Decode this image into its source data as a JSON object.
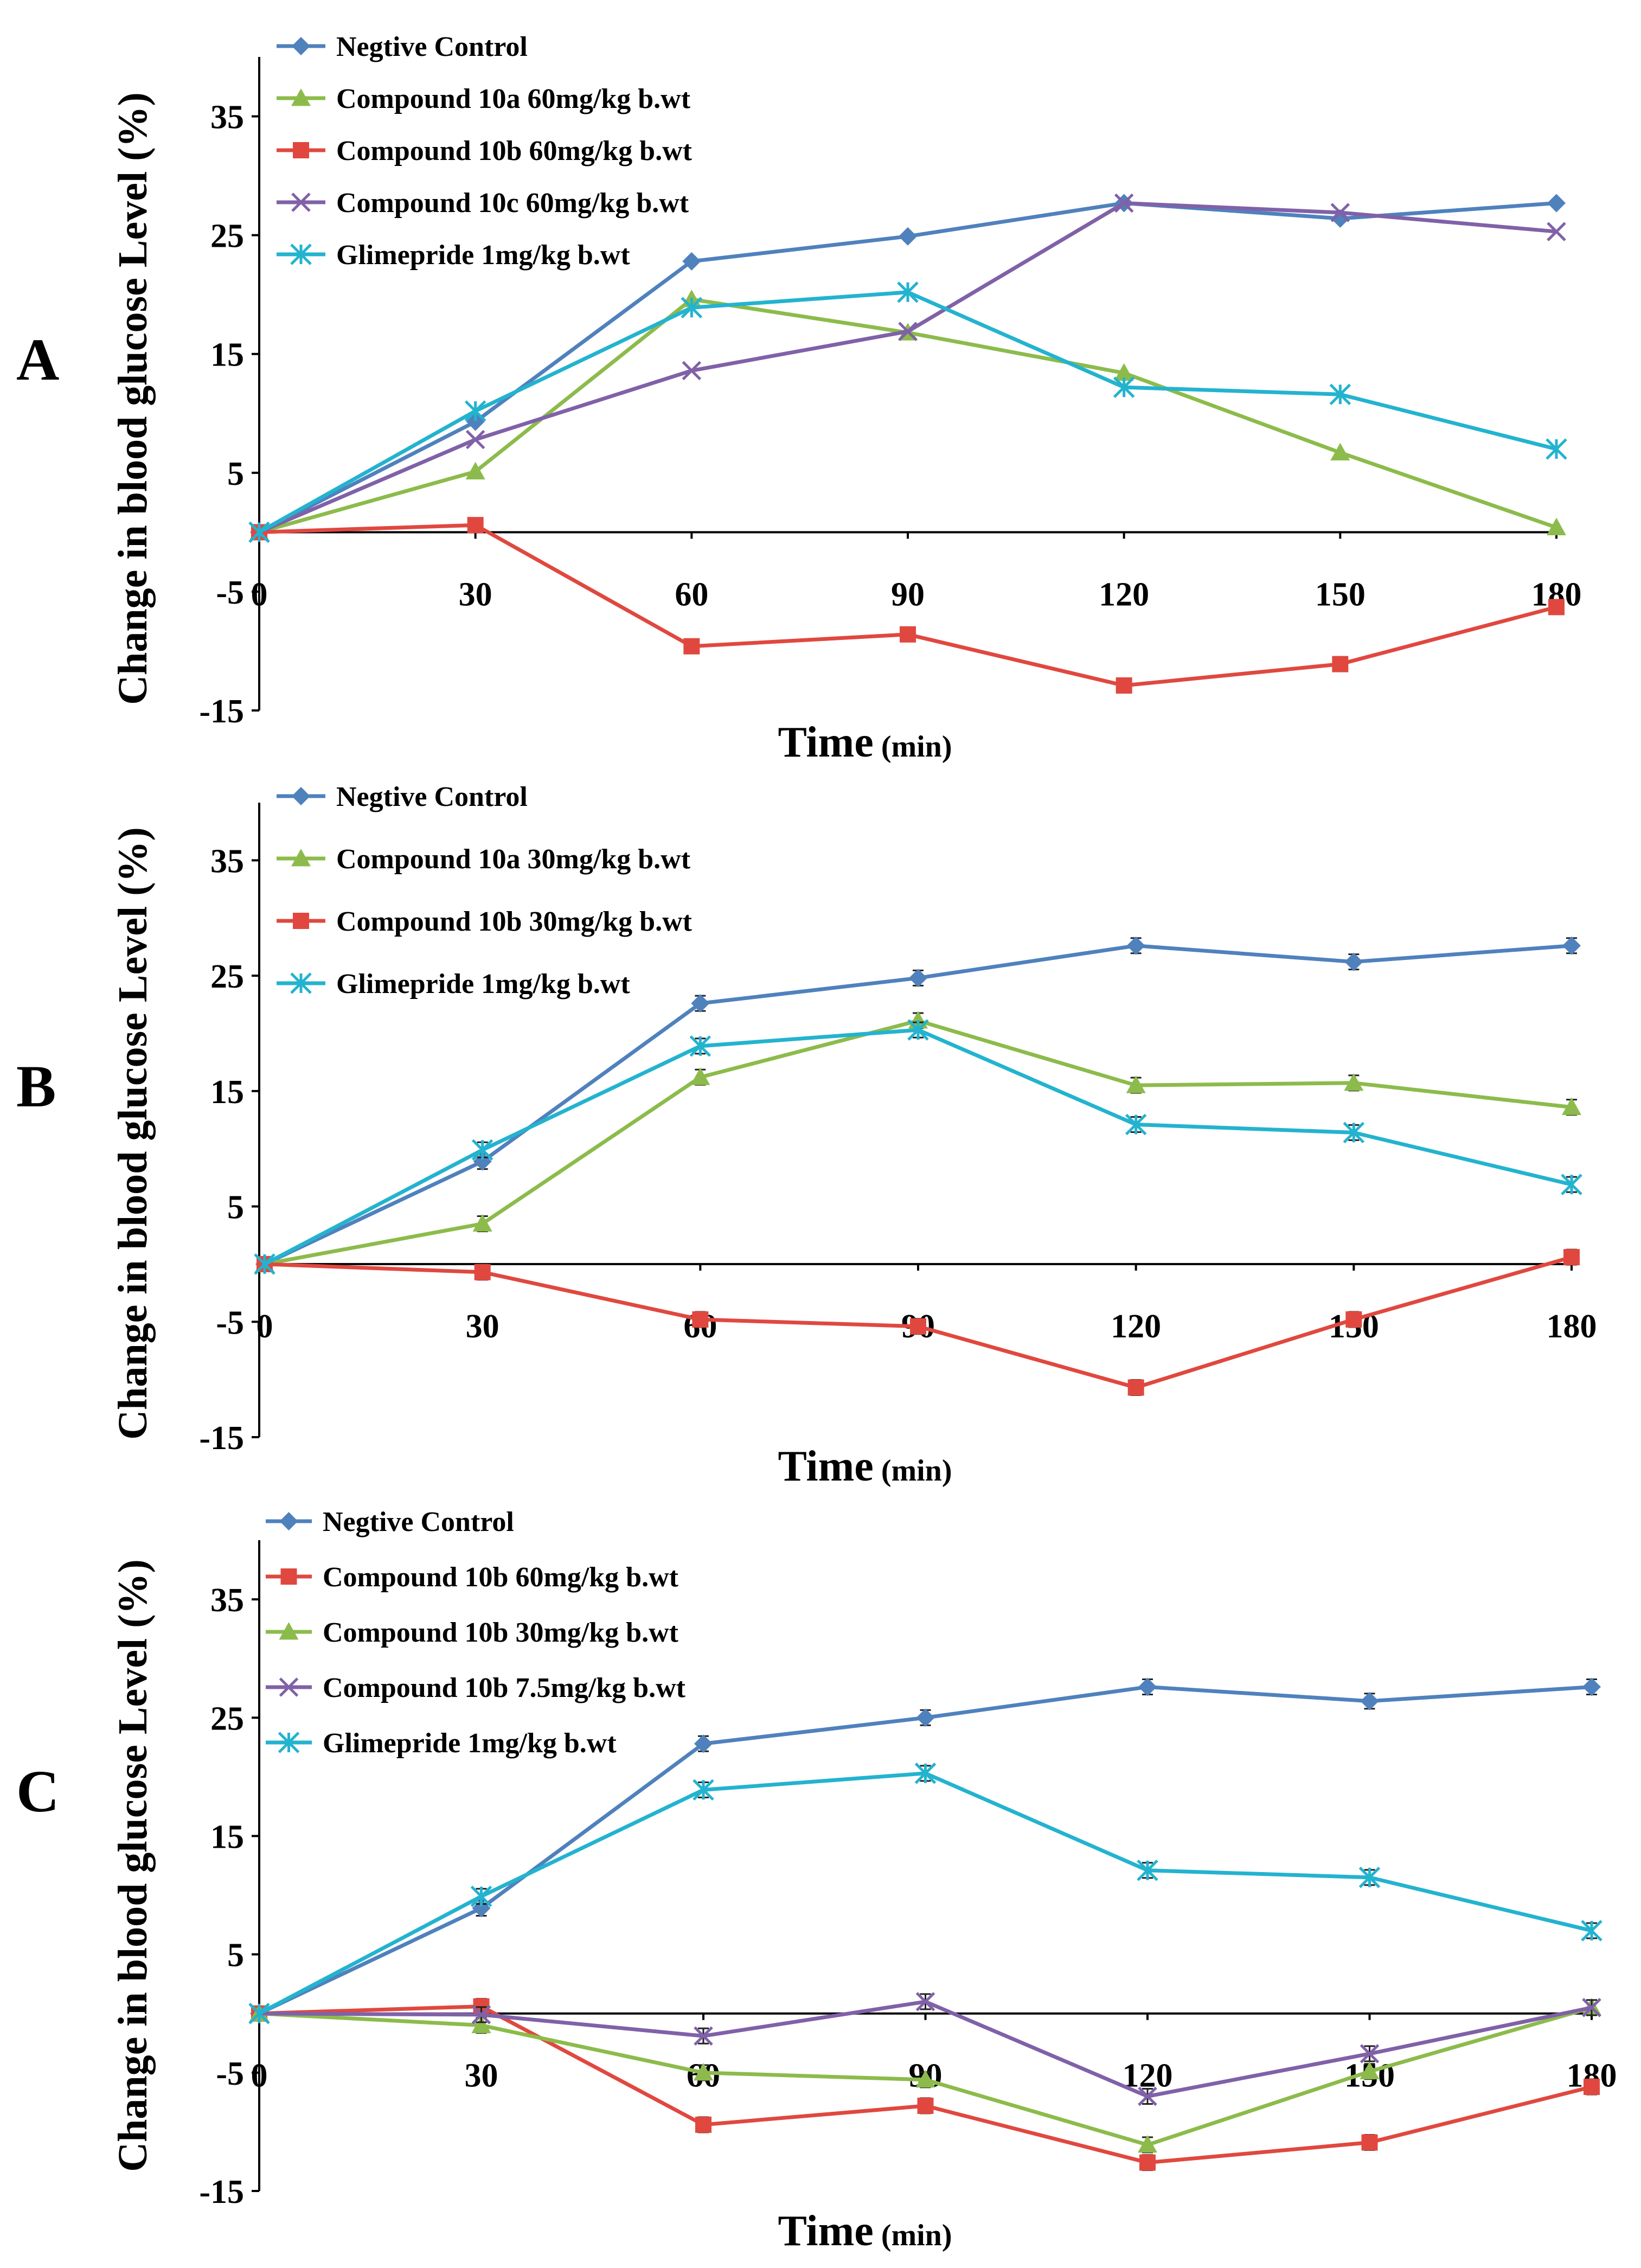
{
  "colors": {
    "blue": "#4f81bd",
    "red": "#e0483f",
    "green": "#8cbb4b",
    "purple": "#8061a8",
    "cyan": "#23b3cf"
  },
  "chart_data": [
    {
      "panel": "A",
      "type": "line",
      "xlabel": "Time",
      "xlabel_unit": "(min)",
      "ylabel": "Change in blood glucose  Level (%)",
      "x": [
        0,
        30,
        60,
        90,
        120,
        150,
        180
      ],
      "x_tick_labels": [
        "0",
        "30",
        "60",
        "90",
        "120",
        "150",
        "180"
      ],
      "ylim": [
        -15,
        40
      ],
      "y_ticks": [
        -15,
        -5,
        5,
        15,
        25,
        35
      ],
      "series": [
        {
          "name": "Negtive Control",
          "color": "#4f81bd",
          "marker": "diamond",
          "values": [
            0,
            9.3,
            22.8,
            24.9,
            27.7,
            26.4,
            27.7
          ]
        },
        {
          "name": "Compound 10a 60mg/kg b.wt",
          "color": "#8cbb4b",
          "marker": "triangle",
          "values": [
            0,
            5.1,
            19.6,
            16.8,
            13.4,
            6.7,
            0.4
          ]
        },
        {
          "name": "Compound 10b 60mg/kg b.wt",
          "color": "#e0483f",
          "marker": "square",
          "values": [
            0,
            0.6,
            -9.6,
            -8.6,
            -12.9,
            -11.1,
            -6.3
          ]
        },
        {
          "name": "Compound 10c 60mg/kg b.wt",
          "color": "#8061a8",
          "marker": "x",
          "values": [
            0,
            7.8,
            13.6,
            16.9,
            27.7,
            26.9,
            25.3
          ]
        },
        {
          "name": "Glimepride 1mg/kg b.wt",
          "color": "#23b3cf",
          "marker": "asterisk",
          "values": [
            0,
            10.2,
            18.9,
            20.2,
            12.2,
            11.6,
            7.0
          ]
        }
      ]
    },
    {
      "panel": "B",
      "type": "line",
      "xlabel": "Time",
      "xlabel_unit": "(min)",
      "ylabel": "Change in blood glucose  Level (%)",
      "x": [
        0,
        30,
        60,
        90,
        120,
        150,
        180
      ],
      "x_tick_labels": [
        "0",
        "30",
        "60",
        "90",
        "120",
        "150",
        "180"
      ],
      "ylim": [
        -15,
        40
      ],
      "y_ticks": [
        -15,
        -5,
        5,
        15,
        25,
        35
      ],
      "series": [
        {
          "name": "Negtive Control",
          "color": "#4f81bd",
          "marker": "diamond",
          "values": [
            0,
            8.9,
            22.6,
            24.8,
            27.6,
            26.2,
            27.6
          ]
        },
        {
          "name": "Compound 10a 30mg/kg b.wt",
          "color": "#8cbb4b",
          "marker": "triangle",
          "values": [
            0,
            3.5,
            16.2,
            21.1,
            15.5,
            15.7,
            13.6
          ]
        },
        {
          "name": "Compound 10b 30mg/kg b.wt",
          "color": "#e0483f",
          "marker": "square",
          "values": [
            0,
            -0.7,
            -4.8,
            -5.4,
            -10.7,
            -4.8,
            0.6
          ]
        },
        {
          "name": "Glimepride 1mg/kg b.wt",
          "color": "#23b3cf",
          "marker": "asterisk",
          "values": [
            0,
            9.9,
            18.9,
            20.3,
            12.1,
            11.4,
            6.9
          ]
        }
      ]
    },
    {
      "panel": "C",
      "type": "line",
      "xlabel": "Time",
      "xlabel_unit": "(min)",
      "ylabel": "Change in blood glucose  Level (%)",
      "x": [
        0,
        30,
        60,
        90,
        120,
        150,
        180
      ],
      "x_tick_labels": [
        "0",
        "30",
        "60",
        "90",
        "120",
        "150",
        "180"
      ],
      "ylim": [
        -15,
        40
      ],
      "y_ticks": [
        -15,
        -5,
        5,
        15,
        25,
        35
      ],
      "series": [
        {
          "name": "Negtive Control",
          "color": "#4f81bd",
          "marker": "diamond",
          "values": [
            0,
            8.9,
            22.8,
            25.0,
            27.6,
            26.4,
            27.6
          ]
        },
        {
          "name": "Compound 10b 60mg/kg b.wt",
          "color": "#e0483f",
          "marker": "square",
          "values": [
            0,
            0.6,
            -9.4,
            -7.8,
            -12.6,
            -10.9,
            -6.2
          ]
        },
        {
          "name": "Compound 10b 30mg/kg b.wt",
          "color": "#8cbb4b",
          "marker": "triangle",
          "values": [
            0,
            -1.0,
            -5.0,
            -5.6,
            -11.1,
            -4.9,
            0.5
          ]
        },
        {
          "name": "Compound 10b 7.5mg/kg b.wt",
          "color": "#8061a8",
          "marker": "x",
          "values": [
            0,
            -0.1,
            -1.9,
            1.0,
            -7.0,
            -3.4,
            0.5
          ]
        },
        {
          "name": "Glimepride 1mg/kg b.wt",
          "color": "#23b3cf",
          "marker": "asterisk",
          "values": [
            0,
            9.9,
            18.9,
            20.3,
            12.1,
            11.5,
            7.0
          ]
        }
      ]
    }
  ]
}
